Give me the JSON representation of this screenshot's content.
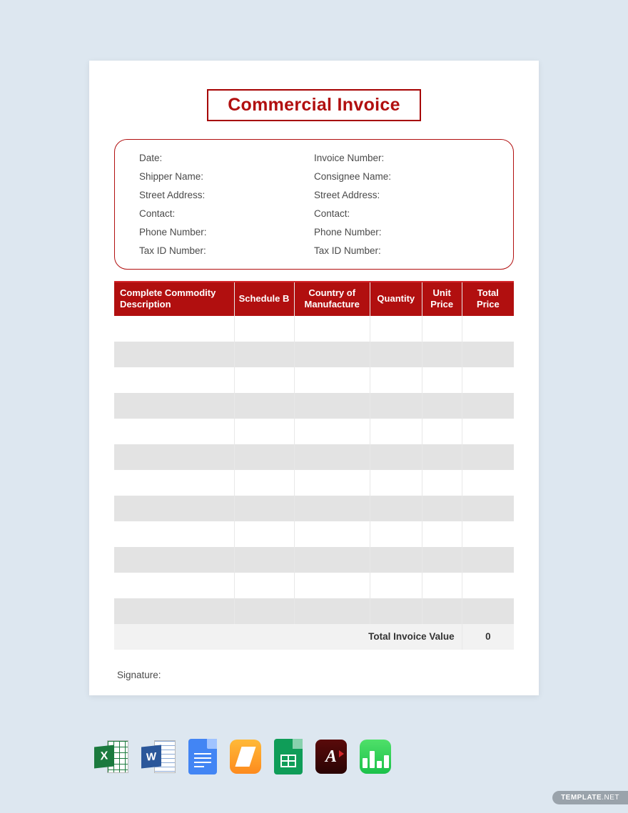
{
  "title": "Commercial Invoice",
  "info_left": [
    "Date:",
    "Shipper Name:",
    "Street Address:",
    "Contact:",
    "Phone Number:",
    "Tax ID Number:"
  ],
  "info_right": [
    "Invoice Number:",
    "Consignee Name:",
    "Street Address:",
    "Contact:",
    "Phone Number:",
    "Tax ID Number:"
  ],
  "table": {
    "columns": [
      {
        "label": "Complete Commodity Description",
        "width": "30%"
      },
      {
        "label": "Schedule B",
        "width": "15%"
      },
      {
        "label": "Country of Manufacture",
        "width": "19%"
      },
      {
        "label": "Quantity",
        "width": "13%"
      },
      {
        "label": "Unit Price",
        "width": "10%"
      },
      {
        "label": "Total Price",
        "width": "13%"
      }
    ],
    "row_count": 12,
    "total_label": "Total Invoice Value",
    "total_value": "0"
  },
  "signature_label": "Signature:",
  "icons": [
    "excel",
    "word",
    "google-docs",
    "pages",
    "google-sheets",
    "pdf",
    "numbers"
  ],
  "watermark": {
    "brand": "TEMPLATE",
    "suffix": ".NET"
  },
  "colors": {
    "page_bg": "#dde7f0",
    "accent": "#b10f0f",
    "row_alt": "#e3e3e3",
    "total_bg": "#f2f2f2"
  }
}
